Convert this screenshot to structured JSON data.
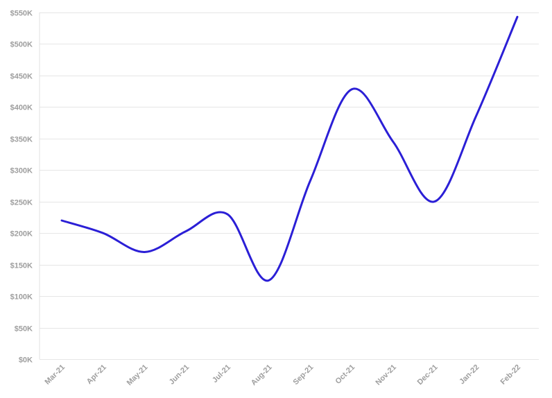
{
  "chart_data": {
    "type": "line",
    "title": "",
    "xlabel": "",
    "ylabel": "",
    "categories": [
      "Mar-21",
      "Apr-21",
      "May-21",
      "Jun-21",
      "Jul-21",
      "Aug-21",
      "Sep-21",
      "Oct-21",
      "Nov-21",
      "Dec-21",
      "Jan-22",
      "Feb-22"
    ],
    "series": [
      {
        "values": [
          220000,
          200000,
          170000,
          203000,
          230000,
          125000,
          283000,
          428000,
          345000,
          250000,
          385000,
          543000
        ],
        "color": "#2b1fd6"
      }
    ],
    "ylim": [
      0,
      550000
    ],
    "yticks": [
      0,
      50000,
      100000,
      150000,
      200000,
      250000,
      300000,
      350000,
      400000,
      450000,
      500000,
      550000
    ],
    "ytick_labels": [
      "$0K",
      "$50K",
      "$100K",
      "$150K",
      "$200K",
      "$250K",
      "$300K",
      "$350K",
      "$400K",
      "$450K",
      "$500K",
      "$550K"
    ],
    "grid": true,
    "legend": "none"
  }
}
